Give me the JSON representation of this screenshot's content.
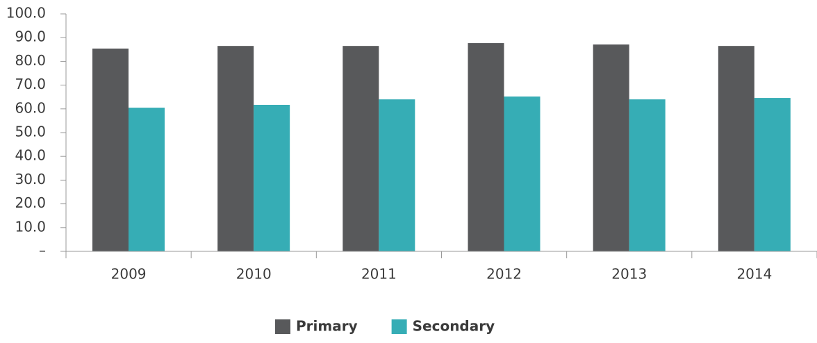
{
  "chart_data": {
    "type": "bar",
    "categories": [
      "2009",
      "2010",
      "2011",
      "2012",
      "2013",
      "2014"
    ],
    "series": [
      {
        "name": "Primary",
        "color": "#58595b",
        "values": [
          85.4,
          86.5,
          86.5,
          87.7,
          87.1,
          86.5
        ]
      },
      {
        "name": "Secondary",
        "color": "#36adb5",
        "values": [
          60.5,
          61.7,
          64.0,
          65.2,
          64.0,
          64.6
        ]
      }
    ],
    "ylim": [
      0,
      100
    ],
    "yticks": [
      {
        "value": 0,
        "label": "–"
      },
      {
        "value": 10,
        "label": "10.0"
      },
      {
        "value": 20,
        "label": "20.0"
      },
      {
        "value": 30,
        "label": "30.0"
      },
      {
        "value": 40,
        "label": "40.0"
      },
      {
        "value": 50,
        "label": "50.0"
      },
      {
        "value": 60,
        "label": "60.0"
      },
      {
        "value": 70,
        "label": "70.0"
      },
      {
        "value": 80,
        "label": "80.0"
      },
      {
        "value": 90,
        "label": "90.0"
      },
      {
        "value": 100,
        "label": "100.0"
      }
    ],
    "legend": "bottom"
  }
}
